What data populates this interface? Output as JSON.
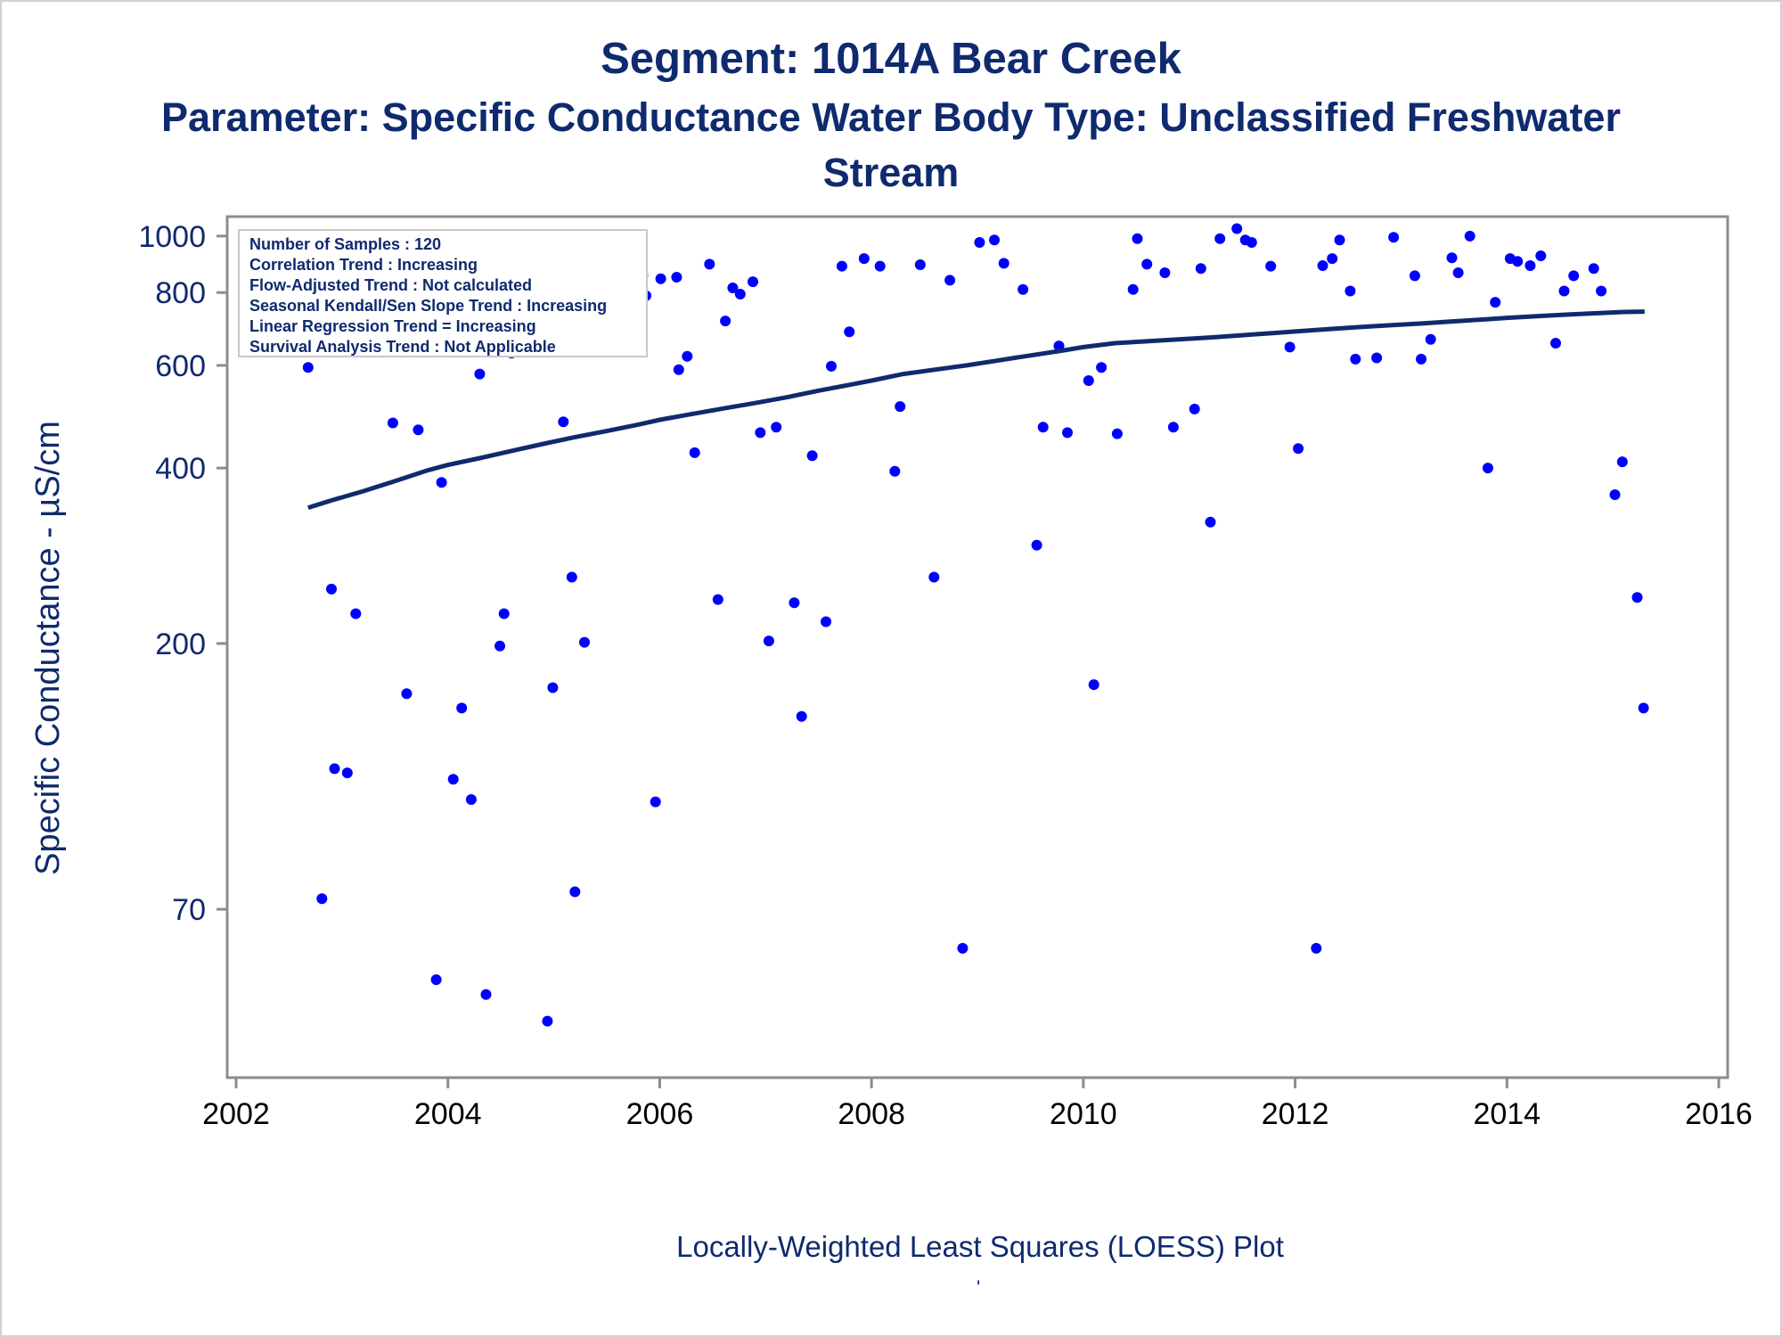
{
  "chart_data": {
    "type": "scatter",
    "title": "Segment: 1014A  Bear Creek",
    "subtitle_line1": "Parameter: Specific Conductance   Water Body Type: Unclassified Freshwater",
    "subtitle_line2": "Stream",
    "ylabel": "Specific Conductance -  µS/cm",
    "xlabel": "",
    "footnote": "Locally-Weighted Least Squares (LOESS) Plot",
    "footnote_mark": "'",
    "y_scale": "log",
    "xlim": [
      2002,
      2016
    ],
    "ylim": [
      36,
      1080
    ],
    "x_ticks": [
      "2002",
      "2004",
      "2006",
      "2008",
      "2010",
      "2012",
      "2014",
      "2016"
    ],
    "y_ticks": [
      {
        "value": 70,
        "label": "70"
      },
      {
        "value": 200,
        "label": "200"
      },
      {
        "value": 400,
        "label": "400"
      },
      {
        "value": 600,
        "label": "600"
      },
      {
        "value": 800,
        "label": "800"
      },
      {
        "value": 1000,
        "label": "1000"
      }
    ],
    "grid": false,
    "stats_box": {
      "placement": "top-left",
      "lines": [
        "Number of Samples : 120",
        "Correlation Trend : Increasing",
        "Flow-Adjusted Trend : Not calculated",
        "Seasonal Kendall/Sen Slope Trend : Increasing",
        "Linear Regression Trend = Increasing",
        "Survival Analysis Trend : Not Applicable"
      ]
    },
    "colors": {
      "points": "#0000ff",
      "loess": "#0f2a6e",
      "text": "#0f2a6e",
      "axis": "#8c8c8c"
    },
    "points": [
      [
        2002.68,
        595
      ],
      [
        2002.81,
        73
      ],
      [
        2002.9,
        248
      ],
      [
        2002.93,
        122
      ],
      [
        2003.05,
        120
      ],
      [
        2003.13,
        225
      ],
      [
        2003.28,
        715
      ],
      [
        2003.37,
        735
      ],
      [
        2003.48,
        478
      ],
      [
        2003.57,
        665
      ],
      [
        2003.61,
        164
      ],
      [
        2003.72,
        465
      ],
      [
        2003.78,
        665
      ],
      [
        2003.89,
        53
      ],
      [
        2003.94,
        378
      ],
      [
        2004.05,
        117
      ],
      [
        2004.13,
        155
      ],
      [
        2004.22,
        108
      ],
      [
        2004.3,
        580
      ],
      [
        2004.36,
        50
      ],
      [
        2004.49,
        198
      ],
      [
        2004.53,
        225
      ],
      [
        2004.6,
        630
      ],
      [
        2004.73,
        745
      ],
      [
        2004.78,
        665
      ],
      [
        2004.94,
        45
      ],
      [
        2004.99,
        168
      ],
      [
        2005.09,
        480
      ],
      [
        2005.17,
        260
      ],
      [
        2005.2,
        75
      ],
      [
        2005.29,
        201
      ],
      [
        2005.69,
        805
      ],
      [
        2005.84,
        855
      ],
      [
        2005.87,
        790
      ],
      [
        2005.96,
        107
      ],
      [
        2006.01,
        845
      ],
      [
        2006.16,
        850
      ],
      [
        2006.18,
        590
      ],
      [
        2006.26,
        622
      ],
      [
        2006.33,
        425
      ],
      [
        2006.47,
        895
      ],
      [
        2006.55,
        238
      ],
      [
        2006.62,
        715
      ],
      [
        2006.69,
        815
      ],
      [
        2006.76,
        795
      ],
      [
        2006.88,
        835
      ],
      [
        2006.95,
        460
      ],
      [
        2007.03,
        202
      ],
      [
        2007.1,
        470
      ],
      [
        2007.27,
        235
      ],
      [
        2007.34,
        150
      ],
      [
        2007.44,
        420
      ],
      [
        2007.57,
        218
      ],
      [
        2007.62,
        598
      ],
      [
        2007.72,
        888
      ],
      [
        2007.79,
        685
      ],
      [
        2007.93,
        915
      ],
      [
        2008.08,
        888
      ],
      [
        2008.22,
        395
      ],
      [
        2008.27,
        510
      ],
      [
        2008.46,
        893
      ],
      [
        2008.59,
        260
      ],
      [
        2008.74,
        840
      ],
      [
        2008.86,
        60
      ],
      [
        2009.02,
        975
      ],
      [
        2009.16,
        985
      ],
      [
        2009.25,
        898
      ],
      [
        2009.43,
        810
      ],
      [
        2009.56,
        295
      ],
      [
        2009.62,
        470
      ],
      [
        2009.77,
        648
      ],
      [
        2009.85,
        460
      ],
      [
        2010.05,
        565
      ],
      [
        2010.1,
        170
      ],
      [
        2010.17,
        595
      ],
      [
        2010.32,
        458
      ],
      [
        2010.47,
        810
      ],
      [
        2010.51,
        990
      ],
      [
        2010.6,
        895
      ],
      [
        2010.77,
        865
      ],
      [
        2010.85,
        470
      ],
      [
        2011.05,
        505
      ],
      [
        2011.11,
        880
      ],
      [
        2011.2,
        323
      ],
      [
        2011.29,
        990
      ],
      [
        2011.45,
        1030
      ],
      [
        2011.53,
        985
      ],
      [
        2011.59,
        975
      ],
      [
        2011.77,
        888
      ],
      [
        2011.95,
        645
      ],
      [
        2012.03,
        432
      ],
      [
        2012.2,
        60
      ],
      [
        2012.26,
        890
      ],
      [
        2012.35,
        915
      ],
      [
        2012.42,
        985
      ],
      [
        2012.52,
        805
      ],
      [
        2012.57,
        615
      ],
      [
        2012.77,
        618
      ],
      [
        2012.93,
        995
      ],
      [
        2013.13,
        855
      ],
      [
        2013.19,
        615
      ],
      [
        2013.28,
        665
      ],
      [
        2013.48,
        918
      ],
      [
        2013.54,
        865
      ],
      [
        2013.65,
        1000
      ],
      [
        2013.82,
        400
      ],
      [
        2013.89,
        770
      ],
      [
        2014.03,
        915
      ],
      [
        2014.1,
        905
      ],
      [
        2014.22,
        890
      ],
      [
        2014.32,
        925
      ],
      [
        2014.46,
        655
      ],
      [
        2014.54,
        805
      ],
      [
        2014.63,
        855
      ],
      [
        2014.82,
        880
      ],
      [
        2014.89,
        805
      ],
      [
        2015.02,
        360
      ],
      [
        2015.09,
        410
      ],
      [
        2015.23,
        240
      ],
      [
        2015.29,
        155
      ]
    ],
    "loess": [
      [
        2002.68,
        342
      ],
      [
        2002.9,
        352
      ],
      [
        2003.2,
        365
      ],
      [
        2003.5,
        380
      ],
      [
        2003.8,
        396
      ],
      [
        2004.0,
        405
      ],
      [
        2004.3,
        416
      ],
      [
        2004.6,
        428
      ],
      [
        2004.9,
        440
      ],
      [
        2005.2,
        452
      ],
      [
        2005.5,
        463
      ],
      [
        2005.8,
        475
      ],
      [
        2006.0,
        484
      ],
      [
        2006.3,
        495
      ],
      [
        2006.6,
        506
      ],
      [
        2006.9,
        517
      ],
      [
        2007.2,
        529
      ],
      [
        2007.5,
        543
      ],
      [
        2007.8,
        556
      ],
      [
        2008.0,
        565
      ],
      [
        2008.3,
        580
      ],
      [
        2008.6,
        590
      ],
      [
        2008.9,
        600
      ],
      [
        2009.2,
        612
      ],
      [
        2009.5,
        624
      ],
      [
        2009.8,
        636
      ],
      [
        2010.0,
        645
      ],
      [
        2010.3,
        655
      ],
      [
        2010.6,
        660
      ],
      [
        2010.9,
        665
      ],
      [
        2011.2,
        670
      ],
      [
        2011.5,
        676
      ],
      [
        2011.8,
        682
      ],
      [
        2012.0,
        686
      ],
      [
        2012.3,
        692
      ],
      [
        2012.6,
        698
      ],
      [
        2012.9,
        703
      ],
      [
        2013.2,
        708
      ],
      [
        2013.5,
        714
      ],
      [
        2013.8,
        720
      ],
      [
        2014.0,
        724
      ],
      [
        2014.3,
        729
      ],
      [
        2014.6,
        734
      ],
      [
        2014.9,
        738
      ],
      [
        2015.1,
        741
      ],
      [
        2015.3,
        742
      ]
    ]
  }
}
